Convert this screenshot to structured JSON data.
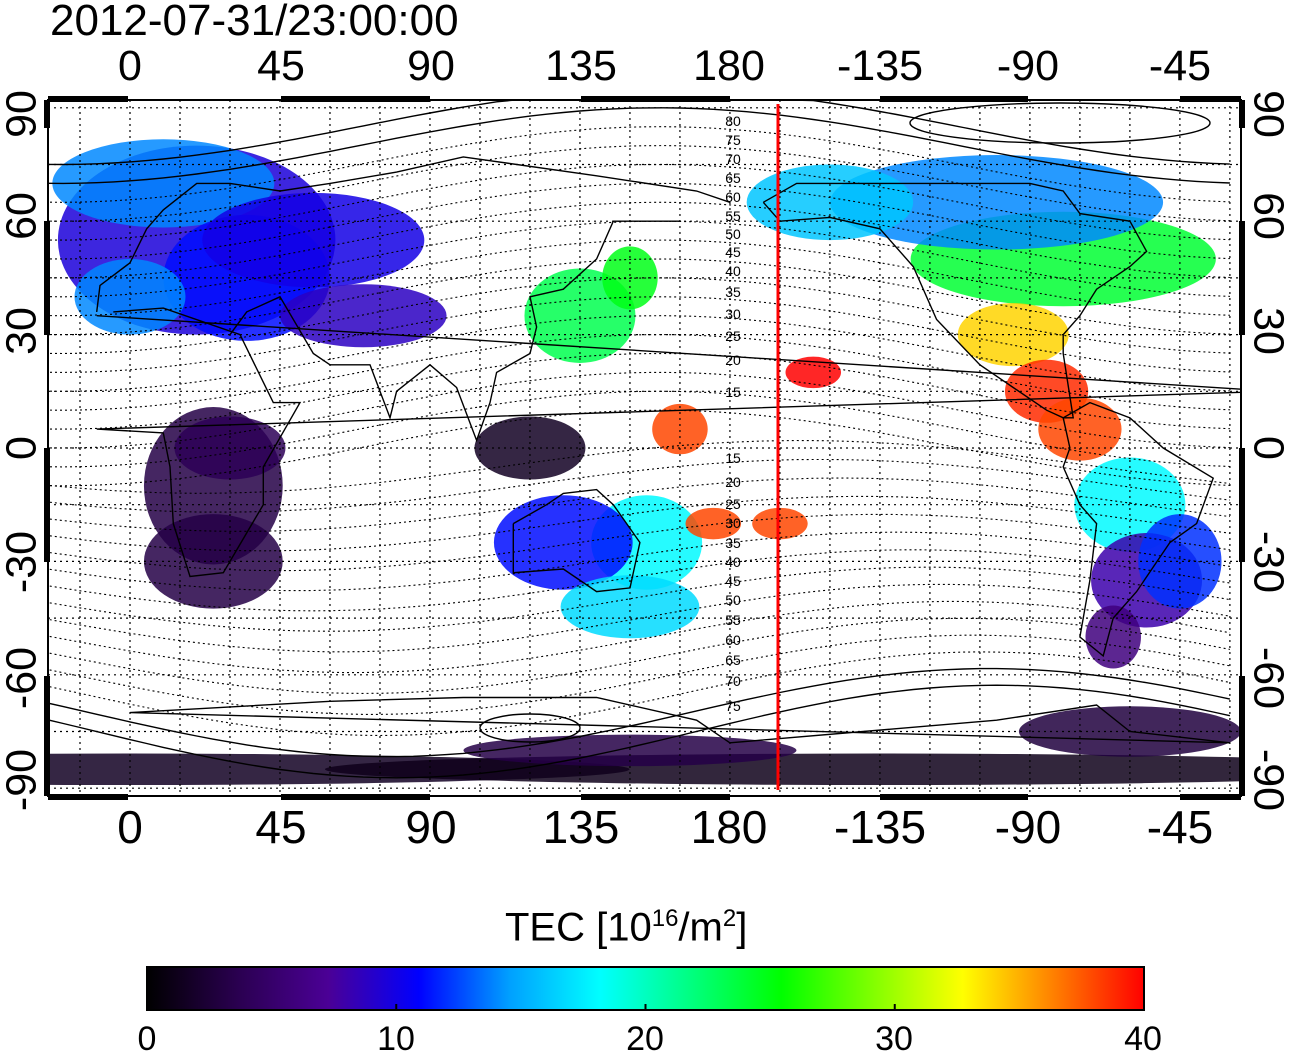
{
  "title": "2012-07-31/23:00:00",
  "map": {
    "lon_ticks_bottom": [
      "0",
      "45",
      "90",
      "135",
      "180",
      "-135",
      "-90",
      "-45"
    ],
    "lon_ticks_top": [
      "0",
      "45",
      "90",
      "135",
      "180",
      "-135",
      "-90",
      "-45"
    ],
    "lat_ticks": [
      "90",
      "60",
      "30",
      "0",
      "-30",
      "-60",
      "-90"
    ],
    "terminator_color": "#ff0000",
    "contour_labels": [
      "80",
      "75",
      "70",
      "65",
      "60",
      "55",
      "50",
      "45",
      "40",
      "35",
      "30",
      "25",
      "20",
      "15",
      "15",
      "20",
      "25",
      "30",
      "35",
      "40",
      "45",
      "50",
      "55",
      "60",
      "65",
      "70",
      "75"
    ]
  },
  "colorbar": {
    "label_main": "TEC  [10",
    "label_exp": "16",
    "label_unit": "/m",
    "label_exp2": "2",
    "label_close": "]",
    "ticks": [
      "0",
      "10",
      "20",
      "30",
      "40"
    ],
    "range": [
      0,
      40
    ],
    "stops": [
      "#000000",
      "#2a0050",
      "#4b0096",
      "#0000ff",
      "#00a0ff",
      "#00ffff",
      "#00ff80",
      "#00ff00",
      "#80ff00",
      "#ffff00",
      "#ff8000",
      "#ff0000"
    ]
  }
}
